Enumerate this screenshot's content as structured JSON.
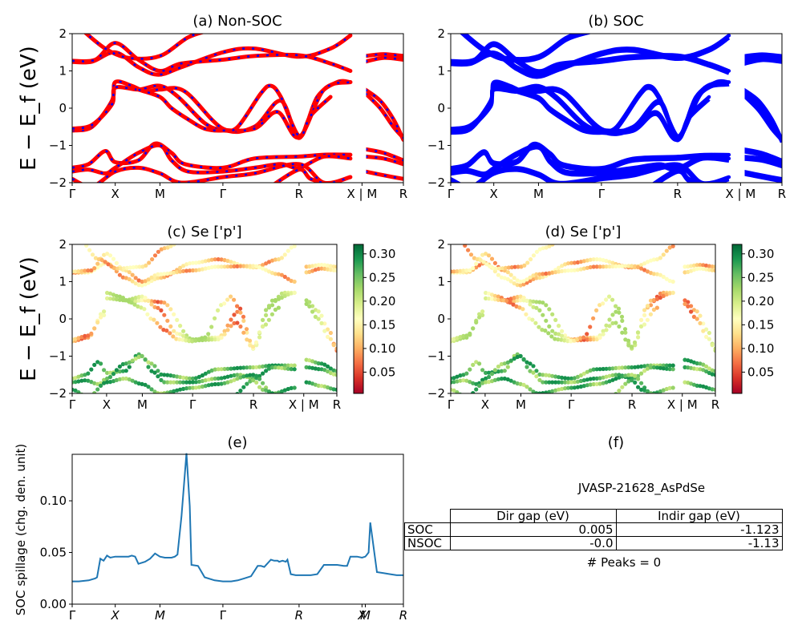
{
  "chart_data": [
    {
      "type": "line",
      "panel": "a",
      "title": "(a) Non-SOC",
      "ylabel": "E − E_f (eV)",
      "ylim": [
        -2,
        2
      ],
      "yticks": [
        "2",
        "1",
        "0",
        "−1",
        "−2"
      ],
      "kpath_labels": [
        "Γ",
        "X",
        "M",
        "Γ",
        "R",
        "X | M",
        "R"
      ],
      "kpath_positions": [
        0,
        0.13,
        0.265,
        0.455,
        0.685,
        0.875,
        1.0
      ],
      "colors": {
        "line": "#ff0000",
        "dash": "#0000ff"
      }
    },
    {
      "type": "line",
      "panel": "b",
      "title": "(b) SOC",
      "ylim": [
        -2,
        2
      ],
      "yticks": [
        "2",
        "1",
        "0",
        "−1",
        "−2"
      ],
      "kpath_labels": [
        "Γ",
        "X",
        "M",
        "Γ",
        "R",
        "X | M",
        "R"
      ],
      "kpath_positions": [
        0,
        0.13,
        0.265,
        0.455,
        0.685,
        0.875,
        1.0
      ],
      "colors": {
        "line": "#0000ff"
      }
    },
    {
      "type": "scatter",
      "panel": "c",
      "title": "(c)  Se ['p']",
      "ylabel": "E − E_f (eV)",
      "ylim": [
        -2,
        2
      ],
      "yticks": [
        "2",
        "1",
        "0",
        "−1",
        "−2"
      ],
      "kpath_labels": [
        "Γ",
        "X",
        "M",
        "Γ",
        "R",
        "X | M",
        "R"
      ],
      "kpath_positions": [
        0,
        0.13,
        0.265,
        0.455,
        0.685,
        0.875,
        1.0
      ],
      "colorbar": {
        "colormap": "RdYlGn",
        "range": [
          0.005,
          0.32
        ],
        "ticks": [
          "0.30",
          "0.25",
          "0.20",
          "0.15",
          "0.10",
          "0.05"
        ],
        "tick_values": [
          0.3,
          0.25,
          0.2,
          0.15,
          0.1,
          0.05
        ]
      }
    },
    {
      "type": "scatter",
      "panel": "d",
      "title": "(d) Se ['p']",
      "ylim": [
        -2,
        2
      ],
      "yticks": [
        "2",
        "1",
        "0",
        "−1",
        "−2"
      ],
      "kpath_labels": [
        "Γ",
        "X",
        "M",
        "Γ",
        "R",
        "X | M",
        "R"
      ],
      "kpath_positions": [
        0,
        0.13,
        0.265,
        0.455,
        0.685,
        0.875,
        1.0
      ],
      "colorbar": {
        "colormap": "RdYlGn",
        "range": [
          0.005,
          0.32
        ],
        "ticks": [
          "0.30",
          "0.25",
          "0.20",
          "0.15",
          "0.10",
          "0.05"
        ],
        "tick_values": [
          0.3,
          0.25,
          0.2,
          0.15,
          0.1,
          0.05
        ]
      }
    },
    {
      "type": "line",
      "panel": "e",
      "title": "(e)",
      "ylabel": "SOC spillage (chg. den. unit)",
      "ylim": [
        0,
        0.145
      ],
      "yticks": [
        "0.10",
        "0.05",
        "0.00"
      ],
      "ytick_values": [
        0.1,
        0.05,
        0.0
      ],
      "kpath_labels": [
        "Γ",
        "X",
        "M",
        "Γ",
        "R",
        "X",
        "M",
        "R"
      ],
      "kpath_positions": [
        0,
        0.13,
        0.265,
        0.455,
        0.685,
        0.875,
        0.885,
        1.0
      ],
      "colors": {
        "line": "#1f77b4"
      },
      "series": [
        {
          "x": [
            0,
            0.02,
            0.05,
            0.07,
            0.075,
            0.085,
            0.095,
            0.105,
            0.115,
            0.13,
            0.15,
            0.17,
            0.18,
            0.19,
            0.2,
            0.22,
            0.235,
            0.25,
            0.265,
            0.28,
            0.29,
            0.3,
            0.31,
            0.318,
            0.33,
            0.345,
            0.355,
            0.36,
            0.38,
            0.4,
            0.43,
            0.455,
            0.48,
            0.5,
            0.52,
            0.54,
            0.56,
            0.57,
            0.58,
            0.6,
            0.61,
            0.62,
            0.625,
            0.635,
            0.645,
            0.65,
            0.66,
            0.675,
            0.685,
            0.7,
            0.72,
            0.74,
            0.76,
            0.78,
            0.8,
            0.82,
            0.83,
            0.84,
            0.85,
            0.86,
            0.875,
            0.885,
            0.89,
            0.895,
            0.9,
            0.92,
            0.94,
            0.96,
            0.98,
            1.0
          ],
          "y": [
            0.022,
            0.022,
            0.023,
            0.025,
            0.026,
            0.044,
            0.042,
            0.047,
            0.045,
            0.046,
            0.046,
            0.046,
            0.047,
            0.046,
            0.039,
            0.041,
            0.044,
            0.049,
            0.046,
            0.045,
            0.045,
            0.045,
            0.046,
            0.048,
            0.085,
            0.146,
            0.095,
            0.038,
            0.037,
            0.026,
            0.023,
            0.022,
            0.022,
            0.023,
            0.025,
            0.027,
            0.037,
            0.037,
            0.036,
            0.043,
            0.042,
            0.042,
            0.041,
            0.042,
            0.041,
            0.043,
            0.029,
            0.028,
            0.028,
            0.028,
            0.028,
            0.029,
            0.038,
            0.038,
            0.038,
            0.037,
            0.037,
            0.046,
            0.046,
            0.046,
            0.045,
            0.046,
            0.048,
            0.05,
            0.079,
            0.031,
            0.03,
            0.029,
            0.028,
            0.028
          ]
        }
      ]
    }
  ],
  "panel_f": {
    "title": "(f)",
    "subtitle": "JVASP-21628_AsPdSe",
    "table": {
      "columns": [
        "Dir gap (eV)",
        "Indir gap (eV)"
      ],
      "rows": [
        {
          "label": "SOC",
          "dir": "0.005",
          "indir": "-1.123"
        },
        {
          "label": "NSOC",
          "dir": "-0.0",
          "indir": "-1.13"
        }
      ]
    },
    "peaks": "# Peaks = 0"
  }
}
